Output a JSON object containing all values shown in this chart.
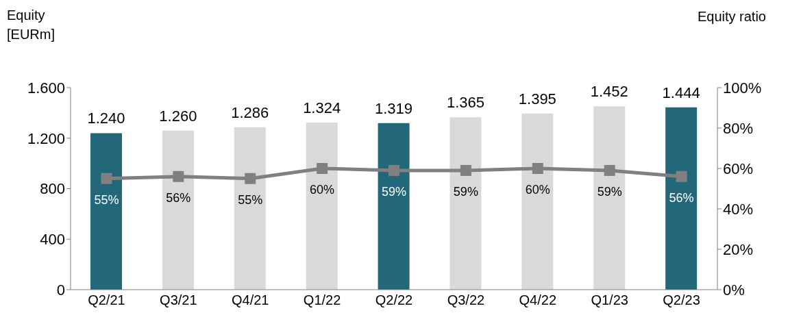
{
  "chart_data": {
    "type": "bar",
    "ylabel": "Equity [EURm]",
    "y2label": "Equity ratio",
    "categories": [
      "Q2/21",
      "Q3/21",
      "Q4/21",
      "Q1/22",
      "Q2/22",
      "Q3/22",
      "Q4/22",
      "Q1/23",
      "Q2/23"
    ],
    "series": [
      {
        "colors": [
          "#23687a",
          "#d9d9d9",
          "#d9d9d9",
          "#d9d9d9",
          "#23687a",
          "#d9d9d9",
          "#d9d9d9",
          "#d9d9d9",
          "#23687a"
        ],
        "values": [
          1240,
          1260,
          1286,
          1324,
          1319,
          1365,
          1395,
          1452,
          1444
        ],
        "value_labels": [
          "1.240",
          "1.260",
          "1.286",
          "1.324",
          "1.319",
          "1.365",
          "1.395",
          "1.452",
          "1.444"
        ]
      },
      {
        "type": "line",
        "axis": "y2",
        "color": "#808080",
        "values": [
          55,
          56,
          55,
          60,
          59,
          59,
          60,
          59,
          56
        ],
        "value_labels": [
          "55%",
          "56%",
          "55%",
          "60%",
          "59%",
          "59%",
          "60%",
          "59%",
          "56%"
        ]
      }
    ],
    "ylim": [
      0,
      1600
    ],
    "yticks": [
      0,
      400,
      800,
      {
        "value": 1200,
        "label": "1.200"
      },
      {
        "value": 1600,
        "label": "1.600"
      }
    ],
    "y2lim": [
      0,
      100
    ],
    "y2ticks": [
      {
        "value": 0,
        "label": "0%"
      },
      {
        "value": 20,
        "label": "20%"
      },
      {
        "value": 40,
        "label": "40%"
      },
      {
        "value": 60,
        "label": "60%"
      },
      {
        "value": 80,
        "label": "80%"
      },
      {
        "value": 100,
        "label": "100%"
      }
    ],
    "grid": false,
    "legend": false,
    "marker": "square",
    "line_style": "solid"
  }
}
